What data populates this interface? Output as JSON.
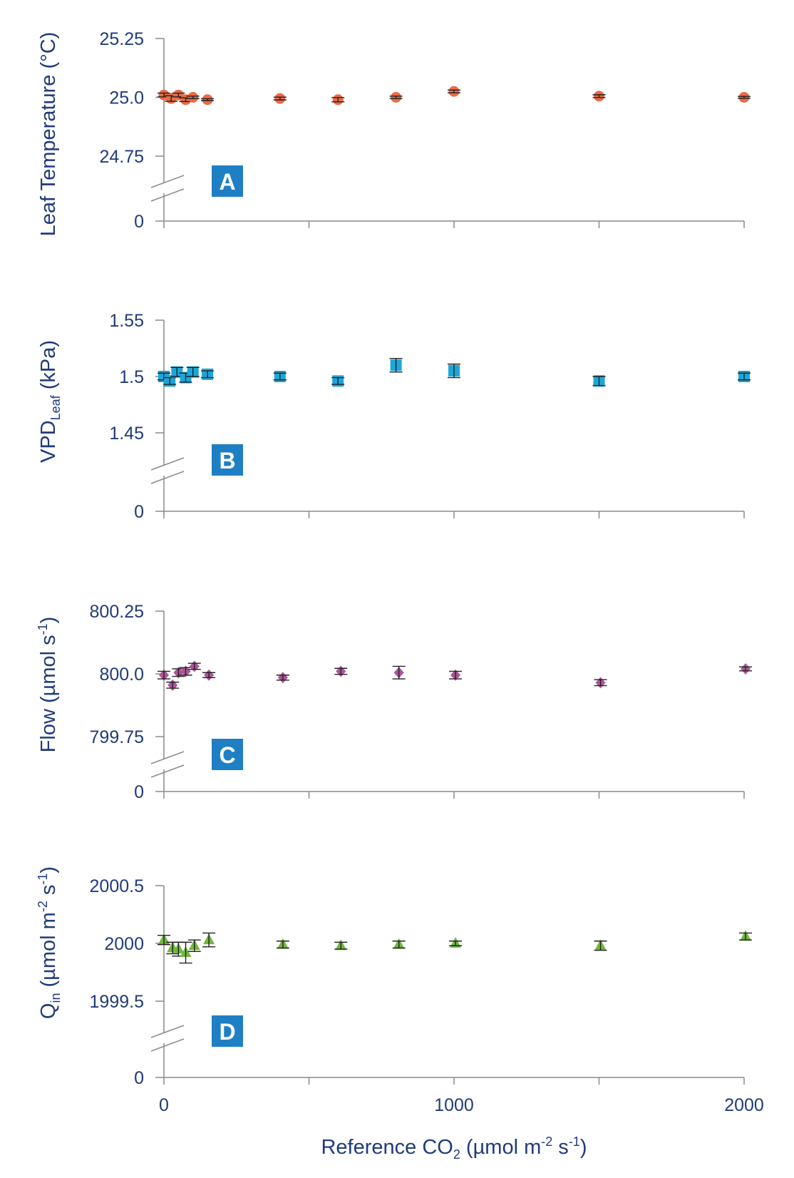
{
  "figure": {
    "x_axis_title": "Reference CO",
    "x_axis_title_sub": "2",
    "x_axis_title_units_a": " (µmol m",
    "x_axis_title_sup_a": "-2",
    "x_axis_title_units_b": " s",
    "x_axis_title_sup_b": "-1",
    "x_axis_title_close": ")",
    "x_tick_labels": [
      "0",
      "1000",
      "2000"
    ]
  },
  "chart_data": [
    {
      "type": "scatter",
      "panel": "A",
      "ylabel": "Leaf Temperature (°C)",
      "color": "#ec6a45",
      "marker": "circle",
      "xlim": [
        0,
        2000
      ],
      "ylim": [
        24.75,
        25.25
      ],
      "axis_break": true,
      "yticks": [
        25.25,
        25.0,
        24.75,
        0
      ],
      "ytick_labels": [
        "25.25",
        "25.0",
        "24.75",
        "0"
      ],
      "x": [
        0,
        25,
        50,
        75,
        100,
        150,
        400,
        600,
        800,
        1000,
        1500,
        2000
      ],
      "y": [
        25.01,
        24.995,
        25.01,
        24.99,
        25.0,
        24.99,
        24.995,
        24.99,
        25.0,
        25.025,
        25.005,
        25.0
      ],
      "err": [
        0.008,
        0.012,
        0.008,
        0.008,
        0.005,
        0.004,
        0.006,
        0.009,
        0.005,
        0.006,
        0.006,
        0.004
      ]
    },
    {
      "type": "scatter",
      "panel": "B",
      "ylabel_main": "VPD",
      "ylabel_sub": "Leaf",
      "ylabel_rest": " (kPa)",
      "color": "#1aa7d9",
      "marker": "square",
      "xlim": [
        0,
        2000
      ],
      "ylim": [
        1.45,
        1.55
      ],
      "axis_break": true,
      "yticks": [
        1.55,
        1.5,
        1.45,
        0
      ],
      "ytick_labels": [
        "1.55",
        "1.5",
        "1.45",
        "0"
      ],
      "x": [
        0,
        20,
        45,
        75,
        100,
        150,
        400,
        600,
        800,
        1000,
        1500,
        2000
      ],
      "y": [
        1.5,
        1.496,
        1.504,
        1.499,
        1.504,
        1.502,
        1.5,
        1.496,
        1.51,
        1.505,
        1.496,
        1.5
      ],
      "err": [
        0.003,
        0.003,
        0.004,
        0.004,
        0.004,
        0.003,
        0.003,
        0.003,
        0.006,
        0.006,
        0.004,
        0.003
      ]
    },
    {
      "type": "scatter",
      "panel": "C",
      "ylabel_main": "Flow (µmol s",
      "ylabel_sup": "-1",
      "ylabel_rest": ")",
      "color": "#b0539a",
      "marker": "diamond",
      "xlim": [
        0,
        2000
      ],
      "ylim": [
        799.75,
        800.25
      ],
      "axis_break": true,
      "yticks": [
        800.25,
        800.0,
        799.75,
        0
      ],
      "ytick_labels": [
        "800.25",
        "800.0",
        "799.75",
        "0"
      ],
      "x": [
        0,
        30,
        50,
        75,
        105,
        155,
        410,
        610,
        810,
        1005,
        1505,
        2005
      ],
      "y": [
        799.995,
        799.955,
        800.005,
        800.01,
        800.03,
        799.995,
        799.985,
        800.01,
        800.005,
        799.995,
        799.965,
        800.02
      ],
      "err": [
        0.015,
        0.012,
        0.015,
        0.015,
        0.012,
        0.01,
        0.01,
        0.012,
        0.025,
        0.015,
        0.012,
        0.008
      ]
    },
    {
      "type": "scatter",
      "panel": "D",
      "ylabel_main": "Q",
      "ylabel_sub": "in",
      "ylabel_rest_a": " (µmol m",
      "ylabel_sup_a": "-2",
      "ylabel_rest_b": " s",
      "ylabel_sup_b": "-1",
      "ylabel_close": ")",
      "color": "#72b73f",
      "marker": "triangle",
      "xlim": [
        0,
        2000
      ],
      "ylim": [
        1999.5,
        2000.5
      ],
      "axis_break": true,
      "yticks": [
        2000.5,
        2000,
        1999.5,
        0
      ],
      "ytick_labels": [
        "2000.5",
        "2000",
        "1999.5",
        "0"
      ],
      "x": [
        0,
        30,
        50,
        75,
        105,
        155,
        410,
        610,
        810,
        1005,
        1505,
        2005
      ],
      "y": [
        2000.03,
        1999.96,
        1999.95,
        1999.92,
        1999.98,
        2000.03,
        1999.99,
        1999.98,
        1999.99,
        2000.0,
        1999.98,
        2000.06
      ],
      "err": [
        0.04,
        0.05,
        0.06,
        0.09,
        0.05,
        0.06,
        0.03,
        0.03,
        0.03,
        0.02,
        0.04,
        0.03
      ]
    }
  ]
}
